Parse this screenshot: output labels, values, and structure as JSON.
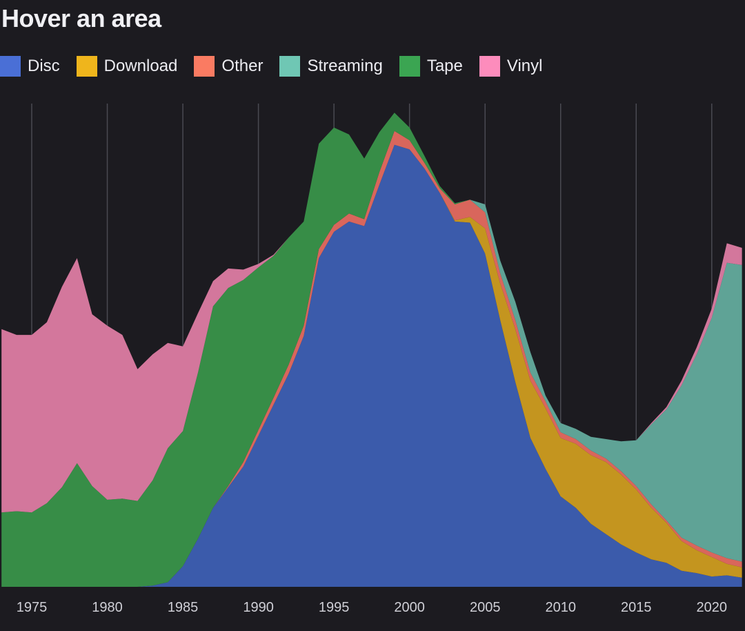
{
  "title": "Hover an area",
  "colors": {
    "background": "#1c1b20",
    "grid": "#4a4a52"
  },
  "chart_data": {
    "type": "area",
    "stacked": true,
    "xlim": [
      1972.9,
      2022.2
    ],
    "ylim": [
      0,
      42.2
    ],
    "x_ticks": [
      1975,
      1980,
      1985,
      1990,
      1995,
      2000,
      2005,
      2010,
      2015,
      2020
    ],
    "grid": "vertical",
    "legend_placement": "top-left",
    "x": [
      1973,
      1974,
      1975,
      1976,
      1977,
      1978,
      1979,
      1980,
      1981,
      1982,
      1983,
      1984,
      1985,
      1986,
      1987,
      1988,
      1989,
      1990,
      1991,
      1992,
      1993,
      1994,
      1995,
      1996,
      1997,
      1998,
      1999,
      2000,
      2001,
      2002,
      2003,
      2004,
      2005,
      2006,
      2007,
      2008,
      2009,
      2010,
      2011,
      2012,
      2013,
      2014,
      2015,
      2016,
      2017,
      2018,
      2019,
      2020,
      2021,
      2022
    ],
    "series": [
      {
        "name": "Disc",
        "color": "#3b5bab",
        "legend_color": "#4a6fd6",
        "values": [
          0,
          0,
          0,
          0,
          0,
          0,
          0,
          0,
          0,
          0,
          0.1,
          0.4,
          1.8,
          4.2,
          6.9,
          8.7,
          10.5,
          13.2,
          15.9,
          18.6,
          21.9,
          28.7,
          31.0,
          31.9,
          31.5,
          35.1,
          38.6,
          38.2,
          36.5,
          34.4,
          31.9,
          31.8,
          29.1,
          23.3,
          17.9,
          13.0,
          10.3,
          7.9,
          6.9,
          5.5,
          4.6,
          3.7,
          3.0,
          2.4,
          2.1,
          1.4,
          1.2,
          0.9,
          1.0,
          0.8
        ]
      },
      {
        "name": "Download",
        "color": "#c4951f",
        "legend_color": "#efb51c",
        "values": [
          0,
          0,
          0,
          0,
          0,
          0,
          0,
          0,
          0,
          0,
          0,
          0,
          0,
          0,
          0,
          0,
          0,
          0,
          0,
          0,
          0,
          0,
          0,
          0,
          0,
          0,
          0,
          0,
          0,
          0,
          0.1,
          0.5,
          2.2,
          3.2,
          4.6,
          5.0,
          5.3,
          5.1,
          5.6,
          6.0,
          6.3,
          6.1,
          5.5,
          4.5,
          3.5,
          2.6,
          2.0,
          1.7,
          1.0,
          0.9
        ]
      },
      {
        "name": "Other",
        "color": "#d9665c",
        "legend_color": "#fa7b62",
        "values": [
          0,
          0,
          0,
          0,
          0,
          0,
          0,
          0,
          0,
          0,
          0,
          0,
          0,
          0,
          0,
          0.1,
          0.4,
          0.5,
          0.6,
          0.8,
          0.9,
          0.8,
          0.6,
          0.7,
          0.6,
          1.1,
          1.2,
          0.8,
          0.5,
          0.4,
          1.4,
          1.5,
          1.4,
          0.9,
          0.8,
          0.7,
          0.6,
          0.5,
          0.4,
          0.4,
          0.3,
          0.3,
          0.3,
          0.3,
          0.2,
          0.3,
          0.4,
          0.4,
          0.5,
          0.5
        ]
      },
      {
        "name": "Streaming",
        "color": "#5fa396",
        "legend_color": "#6fc7b4",
        "values": [
          0,
          0,
          0,
          0,
          0,
          0,
          0,
          0,
          0,
          0,
          0,
          0,
          0,
          0,
          0,
          0,
          0,
          0,
          0,
          0,
          0,
          0,
          0,
          0,
          0,
          0,
          0,
          0,
          0,
          0,
          0,
          0,
          0.7,
          1.1,
          1.6,
          1.8,
          0.5,
          0.8,
          0.9,
          1.2,
          1.7,
          2.6,
          4.0,
          7.0,
          9.7,
          13.3,
          16.7,
          20.5,
          25.8,
          25.9
        ]
      },
      {
        "name": "Tape",
        "color": "#378d47",
        "legend_color": "#3ba552",
        "values": [
          6.5,
          6.6,
          6.5,
          7.3,
          8.7,
          10.8,
          8.8,
          7.6,
          7.7,
          7.5,
          9.2,
          11.7,
          11.8,
          14.5,
          17.6,
          17.3,
          15.9,
          14.2,
          12.4,
          11.1,
          9.1,
          9.2,
          8.5,
          6.9,
          5.3,
          3.5,
          1.6,
          1.1,
          0.6,
          0.2,
          0.1,
          0,
          0,
          0,
          0,
          0,
          0,
          0,
          0,
          0,
          0,
          0,
          0,
          0,
          0,
          0,
          0,
          0,
          0,
          0
        ]
      },
      {
        "name": "Vinyl",
        "color": "#d3779c",
        "legend_color": "#fd8cbc",
        "values": [
          16.0,
          15.4,
          15.5,
          15.8,
          17.5,
          17.9,
          15.0,
          15.2,
          14.3,
          11.5,
          11.0,
          9.2,
          7.4,
          5.2,
          2.2,
          1.7,
          0.9,
          0.3,
          0.1,
          0,
          0,
          0,
          0,
          0,
          0,
          0,
          0,
          0,
          0,
          0,
          0,
          0,
          0,
          0,
          0,
          0,
          0,
          0,
          0,
          0,
          0,
          0,
          0,
          0.1,
          0.2,
          0.4,
          0.6,
          0.8,
          1.7,
          1.5
        ]
      }
    ]
  }
}
